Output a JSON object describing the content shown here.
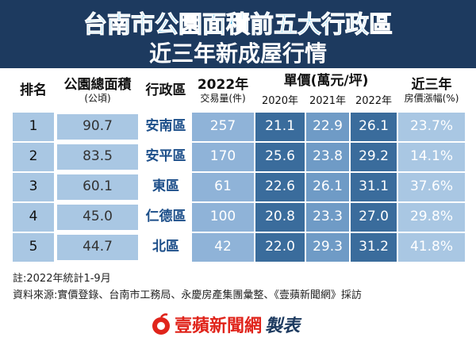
{
  "header": {
    "title": "台南市公園面積前五大行政區",
    "subtitle": "近三年新成屋行情"
  },
  "table": {
    "head": {
      "rank": "排名",
      "park_area": "公園總面積",
      "park_area_unit": "(公頃)",
      "district": "行政區",
      "volume_year": "2022年",
      "volume": "交易量(件)",
      "price": "單價(萬元/坪)",
      "price_years": [
        "2020年",
        "2021年",
        "2022年"
      ],
      "growth": "近三年",
      "growth_unit": "房價漲幅(%)"
    },
    "rows": [
      [
        "1",
        "90.7",
        "安南區",
        "257",
        "21.1",
        "22.9",
        "26.1",
        "23.7%"
      ],
      [
        "2",
        "83.5",
        "安平區",
        "170",
        "25.6",
        "23.8",
        "29.2",
        "14.1%"
      ],
      [
        "3",
        "60.1",
        "東區",
        "61",
        "22.6",
        "26.1",
        "31.1",
        "37.6%"
      ],
      [
        "4",
        "45.0",
        "仁德區",
        "100",
        "20.8",
        "23.3",
        "27.0",
        "29.8%"
      ],
      [
        "5",
        "44.7",
        "北區",
        "42",
        "22.0",
        "29.3",
        "31.2",
        "41.8%"
      ]
    ]
  },
  "notes": [
    "註:2022年統計1-9月",
    "資料來源:實價登錄、台南市工務局、永慶房產集團彙整、《壹蘋新聞網》採訪"
  ],
  "logo": {
    "brand": "壹蘋新聞網",
    "suffix": "製表"
  }
}
